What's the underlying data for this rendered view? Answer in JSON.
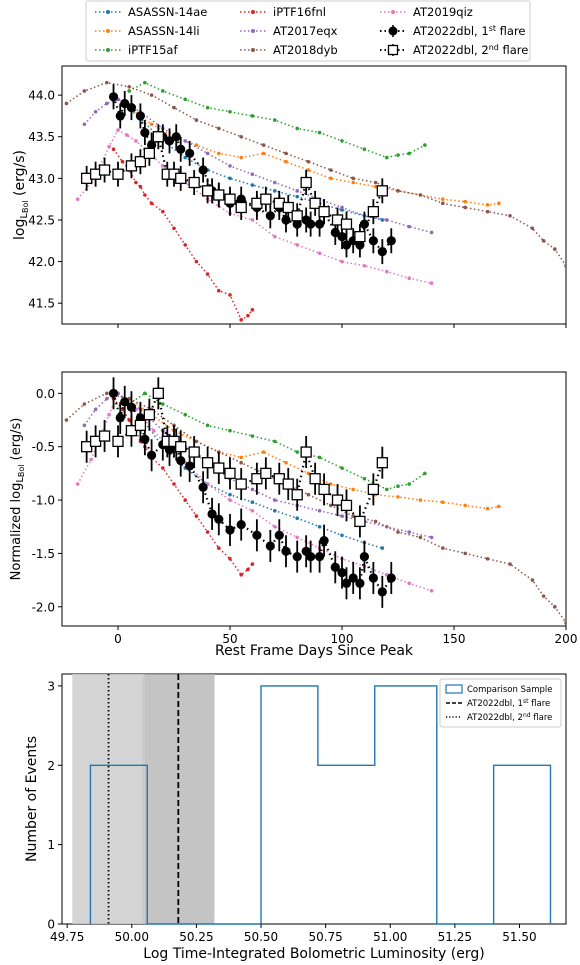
{
  "legend": {
    "entries": [
      {
        "label": "ASASSN-14ae",
        "color": "#1f77b4",
        "marker": "dot"
      },
      {
        "label": "iPTF16fnl",
        "color": "#d62728",
        "marker": "dot"
      },
      {
        "label": "AT2019qiz",
        "color": "#e377c2",
        "marker": "dot"
      },
      {
        "label": "ASASSN-14li",
        "color": "#ff7f0e",
        "marker": "dot"
      },
      {
        "label": "AT2017eqx",
        "color": "#9467bd",
        "marker": "dot"
      },
      {
        "label": "AT2022dbl, 1st flare",
        "color": "#000000",
        "marker": "filled"
      },
      {
        "label": "iPTF15af",
        "color": "#2ca02c",
        "marker": "dot"
      },
      {
        "label": "AT2018dyb",
        "color": "#8c564b",
        "marker": "dot"
      },
      {
        "label": "AT2022dbl, 2nd flare",
        "color": "#000000",
        "marker": "open"
      }
    ]
  },
  "chart_data": [
    {
      "type": "line",
      "panel": "top",
      "ylabel": "logL_Bol (erg/s)",
      "xlim": [
        -25,
        200
      ],
      "ylim": [
        41.25,
        44.35
      ],
      "yticks": [
        "41.5",
        "42.0",
        "42.5",
        "43.0",
        "43.5",
        "44.0"
      ],
      "series": [
        {
          "name": "ASASSN-14ae",
          "x": [
            0,
            10,
            20,
            30,
            40,
            50,
            60,
            70,
            80,
            90,
            100,
            110,
            118
          ],
          "y": [
            43.95,
            43.72,
            43.45,
            43.25,
            43.1,
            43.0,
            42.92,
            42.85,
            42.78,
            42.7,
            42.62,
            42.55,
            42.5
          ]
        },
        {
          "name": "iPTF16fnl",
          "x": [
            -2,
            2,
            5,
            8,
            10,
            12,
            15,
            20,
            25,
            30,
            35,
            40,
            45,
            50,
            55,
            58,
            60
          ],
          "y": [
            43.35,
            43.2,
            43.1,
            42.95,
            42.9,
            42.8,
            42.7,
            42.6,
            42.4,
            42.2,
            42.0,
            41.85,
            41.65,
            41.6,
            41.3,
            41.35,
            41.42
          ]
        },
        {
          "name": "AT2019qiz",
          "x": [
            -18,
            -12,
            -8,
            -4,
            0,
            4,
            8,
            12,
            16,
            20,
            25,
            30,
            40,
            50,
            60,
            70,
            80,
            90,
            100,
            110,
            120,
            130,
            140
          ],
          "y": [
            42.75,
            42.95,
            43.15,
            43.38,
            43.58,
            43.52,
            43.45,
            43.35,
            43.25,
            43.15,
            43.05,
            42.95,
            42.75,
            42.58,
            42.5,
            42.3,
            42.2,
            42.1,
            42.0,
            41.95,
            41.88,
            41.8,
            41.74
          ]
        },
        {
          "name": "ASASSN-14li",
          "x": [
            5,
            15,
            25,
            35,
            45,
            55,
            65,
            75,
            85,
            95,
            105,
            115,
            125,
            135,
            145,
            155,
            165,
            170
          ],
          "y": [
            43.85,
            43.65,
            43.5,
            43.4,
            43.3,
            43.25,
            43.3,
            43.2,
            43.1,
            43.0,
            42.95,
            42.9,
            42.85,
            42.8,
            42.75,
            42.72,
            42.68,
            42.7
          ]
        },
        {
          "name": "AT2017eqx",
          "x": [
            -15,
            -10,
            -5,
            0,
            10,
            20,
            30,
            40,
            50,
            60,
            70,
            80,
            90,
            100,
            110,
            120,
            130,
            140
          ],
          "y": [
            43.65,
            43.8,
            43.9,
            43.95,
            43.8,
            43.6,
            43.45,
            43.3,
            43.15,
            43.05,
            42.95,
            42.85,
            42.75,
            42.65,
            42.55,
            42.5,
            42.42,
            42.35
          ]
        },
        {
          "name": "iPTF15af",
          "x": [
            5,
            12,
            20,
            30,
            40,
            50,
            60,
            70,
            80,
            90,
            100,
            110,
            120,
            125,
            130,
            137
          ],
          "y": [
            44.05,
            44.15,
            44.05,
            43.95,
            43.85,
            43.8,
            43.75,
            43.7,
            43.6,
            43.55,
            43.45,
            43.35,
            43.25,
            43.28,
            43.3,
            43.4
          ]
        },
        {
          "name": "AT2018dyb",
          "x": [
            -23,
            -15,
            -5,
            5,
            15,
            25,
            35,
            45,
            55,
            65,
            75,
            85,
            95,
            105,
            115,
            125,
            135,
            145,
            155,
            165,
            175,
            185,
            190,
            195,
            200
          ],
          "y": [
            43.9,
            44.05,
            44.15,
            44.1,
            44.0,
            43.85,
            43.7,
            43.6,
            43.5,
            43.4,
            43.3,
            43.2,
            43.1,
            43.0,
            42.95,
            42.85,
            42.8,
            42.7,
            42.65,
            42.6,
            42.55,
            42.4,
            42.25,
            42.15,
            41.95
          ]
        },
        {
          "name": "AT2022dbl, 1st flare",
          "x": [
            -2,
            1,
            3,
            6,
            10,
            12,
            15,
            20,
            23,
            26,
            28,
            32,
            38,
            42,
            45,
            50,
            55,
            62,
            68,
            72,
            75,
            80,
            84,
            86,
            90,
            92,
            97,
            100,
            102,
            105,
            108,
            110,
            114,
            118,
            122
          ],
          "y": [
            43.98,
            43.75,
            43.9,
            43.85,
            43.75,
            43.55,
            43.4,
            43.5,
            43.45,
            43.5,
            43.35,
            43.3,
            43.1,
            42.85,
            42.8,
            42.7,
            42.75,
            42.65,
            42.55,
            42.65,
            42.5,
            42.45,
            42.5,
            42.45,
            42.45,
            42.6,
            42.35,
            42.3,
            42.2,
            42.25,
            42.2,
            42.45,
            42.25,
            42.12,
            42.25
          ],
          "err": 0.15
        },
        {
          "name": "AT2022dbl, 2nd flare",
          "x": [
            -14,
            -10,
            -6,
            0,
            6,
            10,
            14,
            18,
            22,
            25,
            28,
            34,
            40,
            45,
            50,
            55,
            62,
            66,
            72,
            76,
            80,
            84,
            88,
            92,
            98,
            102,
            108,
            114,
            118
          ],
          "y": [
            43.0,
            43.05,
            43.1,
            43.05,
            43.15,
            43.2,
            43.3,
            43.5,
            43.05,
            43.05,
            43.0,
            42.95,
            42.85,
            42.8,
            42.75,
            42.65,
            42.7,
            42.75,
            42.7,
            42.65,
            42.55,
            42.95,
            42.7,
            42.6,
            42.5,
            42.45,
            42.3,
            42.6,
            42.85
          ],
          "err": 0.15
        }
      ]
    },
    {
      "type": "line",
      "panel": "middle",
      "xlabel": "Rest Frame Days Since Peak",
      "ylabel": "Normalized logL_Bol (erg/s)",
      "xlim": [
        -25,
        200
      ],
      "ylim": [
        -2.18,
        0.2
      ],
      "xticks": [
        "0",
        "50",
        "100",
        "150",
        "200"
      ],
      "yticks": [
        "-2.0",
        "-1.5",
        "-1.0",
        "-0.5",
        "0.0"
      ],
      "series": [
        {
          "name": "ASASSN-14ae",
          "x": [
            0,
            10,
            20,
            30,
            40,
            50,
            60,
            70,
            80,
            90,
            100,
            110,
            118
          ],
          "y": [
            0.0,
            -0.22,
            -0.5,
            -0.7,
            -0.85,
            -0.95,
            -1.02,
            -1.1,
            -1.17,
            -1.25,
            -1.33,
            -1.4,
            -1.45
          ]
        },
        {
          "name": "iPTF16fnl",
          "x": [
            -2,
            2,
            5,
            8,
            10,
            12,
            15,
            20,
            25,
            30,
            35,
            40,
            45,
            50,
            55,
            58,
            60
          ],
          "y": [
            -0.05,
            -0.15,
            -0.25,
            -0.35,
            -0.45,
            -0.5,
            -0.6,
            -0.7,
            -0.85,
            -1.0,
            -1.15,
            -1.3,
            -1.45,
            -1.55,
            -1.7,
            -1.65,
            -1.6
          ]
        },
        {
          "name": "AT2019qiz",
          "x": [
            -18,
            -12,
            -8,
            -4,
            0,
            4,
            8,
            12,
            16,
            20,
            25,
            30,
            40,
            50,
            60,
            70,
            80,
            90,
            100,
            110,
            120,
            130,
            140
          ],
          "y": [
            -0.85,
            -0.62,
            -0.42,
            -0.2,
            0.0,
            -0.08,
            -0.15,
            -0.25,
            -0.35,
            -0.45,
            -0.55,
            -0.65,
            -0.85,
            -1.0,
            -1.1,
            -1.25,
            -1.35,
            -1.45,
            -1.55,
            -1.62,
            -1.7,
            -1.78,
            -1.85
          ]
        },
        {
          "name": "ASASSN-14li",
          "x": [
            5,
            15,
            25,
            35,
            45,
            55,
            65,
            75,
            85,
            95,
            105,
            115,
            125,
            135,
            145,
            155,
            165,
            170
          ],
          "y": [
            -0.05,
            -0.2,
            -0.35,
            -0.45,
            -0.55,
            -0.6,
            -0.55,
            -0.65,
            -0.75,
            -0.85,
            -0.9,
            -0.95,
            -0.97,
            -1.0,
            -1.02,
            -1.05,
            -1.08,
            -1.06
          ]
        },
        {
          "name": "AT2017eqx",
          "x": [
            -15,
            -10,
            -5,
            0,
            10,
            20,
            30,
            40,
            50,
            60,
            70,
            80,
            90,
            100,
            110,
            120,
            130,
            140
          ],
          "y": [
            -0.3,
            -0.15,
            -0.05,
            0.0,
            -0.15,
            -0.35,
            -0.5,
            -0.65,
            -0.8,
            -0.9,
            -1.0,
            -1.05,
            -1.1,
            -1.15,
            -1.2,
            -1.25,
            -1.3,
            -1.35
          ]
        },
        {
          "name": "iPTF15af",
          "x": [
            5,
            12,
            20,
            30,
            40,
            50,
            60,
            70,
            80,
            90,
            100,
            110,
            120,
            125,
            130,
            137
          ],
          "y": [
            -0.1,
            0.0,
            -0.1,
            -0.2,
            -0.3,
            -0.35,
            -0.4,
            -0.45,
            -0.55,
            -0.6,
            -0.7,
            -0.8,
            -0.9,
            -0.87,
            -0.85,
            -0.75
          ]
        },
        {
          "name": "AT2018dyb",
          "x": [
            -23,
            -15,
            -5,
            5,
            15,
            25,
            35,
            45,
            55,
            65,
            75,
            85,
            95,
            105,
            115,
            125,
            135,
            145,
            155,
            165,
            175,
            185,
            190,
            195,
            200
          ],
          "y": [
            -0.25,
            -0.1,
            0.0,
            -0.05,
            -0.15,
            -0.3,
            -0.45,
            -0.55,
            -0.65,
            -0.75,
            -0.85,
            -0.95,
            -1.05,
            -1.15,
            -1.2,
            -1.3,
            -1.35,
            -1.45,
            -1.5,
            -1.55,
            -1.6,
            -1.75,
            -1.9,
            -2.0,
            -2.15
          ]
        },
        {
          "name": "AT2022dbl, 1st flare",
          "x": [
            -2,
            1,
            3,
            6,
            10,
            12,
            15,
            20,
            23,
            26,
            28,
            32,
            38,
            42,
            45,
            50,
            55,
            62,
            68,
            72,
            75,
            80,
            84,
            86,
            90,
            92,
            97,
            100,
            102,
            105,
            108,
            110,
            114,
            118,
            122
          ],
          "y": [
            0.0,
            -0.23,
            -0.08,
            -0.13,
            -0.23,
            -0.43,
            -0.58,
            -0.48,
            -0.53,
            -0.48,
            -0.63,
            -0.68,
            -0.88,
            -1.13,
            -1.18,
            -1.28,
            -1.23,
            -1.33,
            -1.43,
            -1.33,
            -1.48,
            -1.53,
            -1.48,
            -1.53,
            -1.53,
            -1.38,
            -1.63,
            -1.68,
            -1.78,
            -1.73,
            -1.78,
            -1.53,
            -1.73,
            -1.86,
            -1.73
          ],
          "err": 0.15
        },
        {
          "name": "AT2022dbl, 2nd flare",
          "x": [
            -14,
            -10,
            -6,
            0,
            6,
            10,
            14,
            18,
            22,
            25,
            28,
            34,
            40,
            45,
            50,
            55,
            62,
            66,
            72,
            76,
            80,
            84,
            88,
            92,
            98,
            102,
            108,
            114,
            118
          ],
          "y": [
            -0.5,
            -0.45,
            -0.4,
            -0.45,
            -0.35,
            -0.3,
            -0.2,
            0.0,
            -0.45,
            -0.45,
            -0.5,
            -0.55,
            -0.65,
            -0.7,
            -0.75,
            -0.85,
            -0.8,
            -0.75,
            -0.8,
            -0.85,
            -0.95,
            -0.55,
            -0.8,
            -0.9,
            -1.0,
            -1.05,
            -1.2,
            -0.9,
            -0.65
          ],
          "err": 0.15
        }
      ]
    },
    {
      "type": "histogram",
      "panel": "bottom",
      "xlabel": "Log Time-Integrated Bolometric Luminosity (erg)",
      "ylabel": "Number of Events",
      "xlim": [
        49.73,
        51.68
      ],
      "ylim": [
        0,
        3.15
      ],
      "xticks": [
        "49.75",
        "50.00",
        "50.25",
        "50.50",
        "50.75",
        "51.00",
        "51.25",
        "51.50"
      ],
      "yticks": [
        "0",
        "1",
        "2",
        "3"
      ],
      "bins": [
        {
          "x0": 49.84,
          "x1": 50.06,
          "count": 2
        },
        {
          "x0": 50.06,
          "x1": 50.28,
          "count": 0
        },
        {
          "x0": 50.28,
          "x1": 50.5,
          "count": 0
        },
        {
          "x0": 50.5,
          "x1": 50.72,
          "count": 3
        },
        {
          "x0": 50.72,
          "x1": 50.94,
          "count": 2
        },
        {
          "x0": 50.94,
          "x1": 51.18,
          "count": 3
        },
        {
          "x0": 51.18,
          "x1": 51.4,
          "count": 0
        },
        {
          "x0": 51.4,
          "x1": 51.62,
          "count": 2
        }
      ],
      "vlines": [
        {
          "name": "AT2022dbl, 1st flare",
          "x": 50.18,
          "band": [
            50.04,
            50.32
          ],
          "style": "dashed"
        },
        {
          "name": "AT2022dbl, 2nd flare",
          "x": 49.91,
          "band": [
            49.77,
            50.05
          ],
          "style": "dotted"
        }
      ],
      "legend": [
        "Comparison Sample",
        "AT2022dbl, 1st flare",
        "AT2022dbl, 2nd flare"
      ]
    }
  ]
}
